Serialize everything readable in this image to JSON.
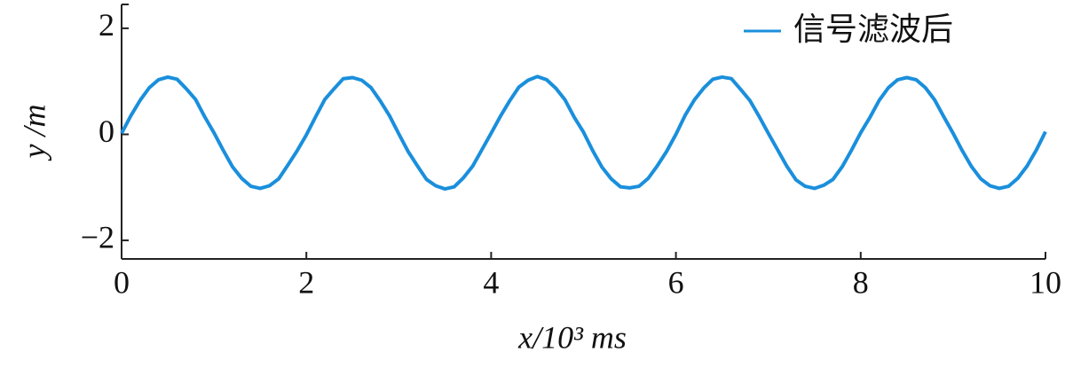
{
  "chart_data": {
    "type": "line",
    "x_label": "x/10³ ms",
    "y_label": "y /m",
    "x": [
      0,
      0.1,
      0.2,
      0.3,
      0.4,
      0.5,
      0.6,
      0.7,
      0.8,
      0.9,
      1,
      1.1,
      1.2,
      1.3,
      1.4,
      1.5,
      1.6,
      1.7,
      1.8,
      1.9,
      2,
      2.1,
      2.2,
      2.3,
      2.4,
      2.5,
      2.6,
      2.7,
      2.8,
      2.9,
      3,
      3.1,
      3.2,
      3.3,
      3.4,
      3.5,
      3.6,
      3.7,
      3.8,
      3.9,
      4,
      4.1,
      4.2,
      4.3,
      4.4,
      4.5,
      4.6,
      4.7,
      4.8,
      4.9,
      5,
      5.1,
      5.2,
      5.3,
      5.4,
      5.5,
      5.6,
      5.7,
      5.8,
      5.9,
      6,
      6.1,
      6.2,
      6.3,
      6.4,
      6.5,
      6.6,
      6.7,
      6.8,
      6.9,
      7,
      7.1,
      7.2,
      7.3,
      7.4,
      7.5,
      7.6,
      7.7,
      7.8,
      7.9,
      8,
      8.1,
      8.2,
      8.3,
      8.4,
      8.5,
      8.6,
      8.7,
      8.8,
      8.9,
      9,
      9.1,
      9.2,
      9.3,
      9.4,
      9.5,
      9.6,
      9.7,
      9.8,
      9.9,
      10
    ],
    "series": [
      {
        "name": "信号滤波后",
        "color": "#1a8fdc",
        "values": [
          0.02,
          0.35,
          0.64,
          0.88,
          1.03,
          1.08,
          1.04,
          0.86,
          0.66,
          0.33,
          0.03,
          -0.3,
          -0.61,
          -0.83,
          -0.98,
          -1.02,
          -0.97,
          -0.84,
          -0.58,
          -0.31,
          -0.01,
          0.33,
          0.66,
          0.86,
          1.05,
          1.07,
          1.02,
          0.88,
          0.63,
          0.35,
          0.01,
          -0.32,
          -0.59,
          -0.85,
          -0.97,
          -1.03,
          -0.99,
          -0.82,
          -0.6,
          -0.29,
          0.02,
          0.34,
          0.63,
          0.89,
          1.02,
          1.09,
          1.03,
          0.87,
          0.65,
          0.32,
          0.04,
          -0.31,
          -0.62,
          -0.84,
          -0.99,
          -1.01,
          -0.98,
          -0.83,
          -0.59,
          -0.32,
          0.0,
          0.36,
          0.65,
          0.87,
          1.04,
          1.08,
          1.05,
          0.85,
          0.64,
          0.34,
          0.02,
          -0.29,
          -0.6,
          -0.86,
          -0.98,
          -1.02,
          -0.96,
          -0.85,
          -0.61,
          -0.3,
          0.03,
          0.32,
          0.64,
          0.88,
          1.03,
          1.07,
          1.03,
          0.88,
          0.65,
          0.33,
          0.02,
          -0.31,
          -0.61,
          -0.84,
          -0.97,
          -1.02,
          -0.98,
          -0.83,
          -0.6,
          -0.3,
          0.05
        ]
      }
    ],
    "xlim": [
      0,
      10
    ],
    "xticks": [
      0,
      2,
      4,
      6,
      8,
      10
    ],
    "ylim": [
      -2.35,
      2.45
    ],
    "yticks": [
      {
        "value": -2,
        "label": "−2"
      },
      0,
      2
    ],
    "legend": "top-right"
  }
}
